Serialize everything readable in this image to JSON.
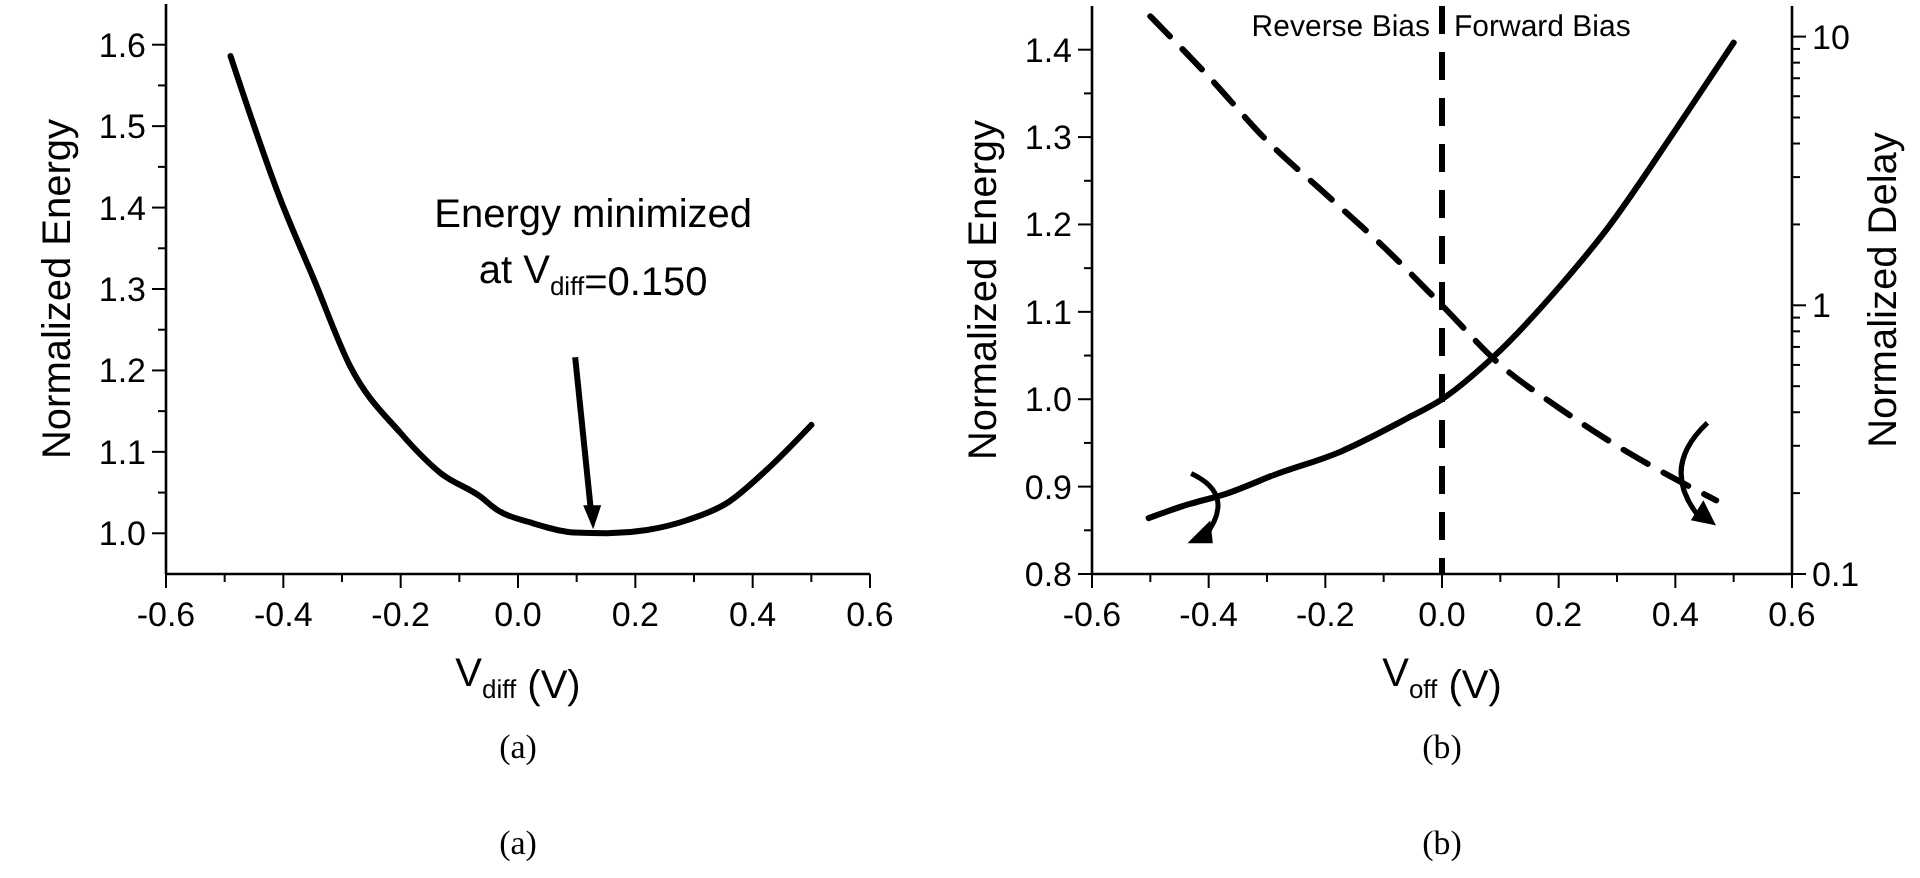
{
  "chart_data": [
    {
      "type": "line",
      "xlabel": "V$_{diff}$ (V)",
      "ylabel": "Normalized Energy",
      "xlim": [
        -0.6,
        0.6
      ],
      "ylim": [
        0.95,
        1.65
      ],
      "xticks": [
        -0.6,
        {
          "value": -0.5,
          "label": null
        },
        -0.4,
        {
          "value": -0.3,
          "label": null
        },
        -0.2,
        {
          "value": -0.1,
          "label": null
        },
        {
          "value": 0,
          "label": "0.0"
        },
        {
          "value": 0.1,
          "label": null
        },
        0.2,
        {
          "value": 0.3,
          "label": null
        },
        0.4,
        {
          "value": 0.5,
          "label": null
        },
        0.6
      ],
      "yticks": [
        {
          "value": 1.0,
          "label": "1.0"
        },
        {
          "value": 1.05,
          "label": null
        },
        1.1,
        {
          "value": 1.15,
          "label": null
        },
        1.2,
        {
          "value": 1.25,
          "label": null
        },
        1.3,
        {
          "value": 1.35,
          "label": null
        },
        1.4,
        {
          "value": 1.45,
          "label": null
        },
        1.5,
        {
          "value": 1.55,
          "label": null
        },
        1.6
      ],
      "grid": false,
      "marker": "none",
      "line_style": "solid",
      "series": [
        {
          "color": "#000000",
          "x": [
            -0.49,
            -0.405,
            -0.348,
            -0.286,
            -0.2,
            -0.132,
            -0.064,
            -0.036,
            0.027,
            0.095,
            0.152,
            0.22,
            0.288,
            0.356,
            0.424,
            0.5
          ],
          "values": [
            1.586,
            1.41,
            1.312,
            1.205,
            1.123,
            1.074,
            1.045,
            1.029,
            1.012,
            1.001,
            1.0,
            1.004,
            1.016,
            1.037,
            1.078,
            1.133
          ]
        }
      ],
      "annotations": [
        "Energy minimized at V$_{diff}$=0.150",
        "(a)",
        "(a)"
      ]
    },
    {
      "type": "line",
      "xlabel": "V$_{off}$ (V)",
      "ylabel": "Normalized Energy",
      "y2label": "Normalized Delay",
      "xlim": [
        -0.6,
        0.6
      ],
      "ylim": [
        0.8,
        1.45
      ],
      "y2lim": [
        0.1,
        13
      ],
      "log": "y2",
      "xticks": [
        -0.6,
        {
          "value": -0.5,
          "label": null
        },
        -0.4,
        {
          "value": -0.3,
          "label": null
        },
        -0.2,
        {
          "value": -0.1,
          "label": null
        },
        {
          "value": 0,
          "label": "0.0"
        },
        {
          "value": 0.1,
          "label": null
        },
        0.2,
        {
          "value": 0.3,
          "label": null
        },
        0.4,
        {
          "value": 0.5,
          "label": null
        },
        0.6
      ],
      "yticks": [
        0.8,
        {
          "value": 0.85,
          "label": null
        },
        0.9,
        {
          "value": 0.95,
          "label": null
        },
        {
          "value": 1.0,
          "label": "1.0"
        },
        {
          "value": 1.05,
          "label": null
        },
        1.1,
        {
          "value": 1.15,
          "label": null
        },
        1.2,
        {
          "value": 1.25,
          "label": null
        },
        1.3,
        {
          "value": 1.35,
          "label": null
        },
        1.4
      ],
      "y2ticks": [
        0.1,
        {
          "value": 0.2,
          "label": null
        },
        {
          "value": 0.3,
          "label": null
        },
        {
          "value": 0.4,
          "label": null
        },
        {
          "value": 0.5,
          "label": null
        },
        {
          "value": 0.6,
          "label": null
        },
        {
          "value": 0.7,
          "label": null
        },
        {
          "value": 0.8,
          "label": null
        },
        {
          "value": 0.9,
          "label": null
        },
        1,
        {
          "value": 2,
          "label": null
        },
        {
          "value": 3,
          "label": null
        },
        {
          "value": 4,
          "label": null
        },
        {
          "value": 5,
          "label": null
        },
        {
          "value": 6,
          "label": null
        },
        {
          "value": 7,
          "label": null
        },
        {
          "value": 8,
          "label": null
        },
        {
          "value": 9,
          "label": null
        },
        10
      ],
      "grid": false,
      "marker": "none",
      "series": [
        {
          "color": "#000000",
          "line_style": "solid",
          "x": [
            -0.503,
            -0.438,
            -0.369,
            -0.289,
            -0.174,
            -0.06,
            0.0,
            0.089,
            0.203,
            0.283,
            0.398,
            0.5
          ],
          "values": [
            0.864,
            0.879,
            0.892,
            0.913,
            0.94,
            0.978,
            1.0,
            1.049,
            1.13,
            1.195,
            1.306,
            1.408
          ]
        },
        {
          "color": "#000000",
          "line_style": "dashed",
          "axis": "y2",
          "x": [
            -0.5,
            -0.4,
            -0.3,
            -0.2,
            -0.1,
            0,
            0.1,
            0.2,
            0.3,
            0.47
          ],
          "values": [
            11.9,
            7.1,
            4.1,
            2.6,
            1.65,
            1.0,
            0.6,
            0.416,
            0.3,
            0.188
          ]
        }
      ],
      "ref_lines": [
        {
          "axis": "x",
          "value": 0,
          "color": "#000000",
          "line_style": "dashed"
        }
      ],
      "annotations": [
        "Reverse Bias",
        "Forward Bias",
        "(b)",
        "(b)"
      ]
    }
  ]
}
